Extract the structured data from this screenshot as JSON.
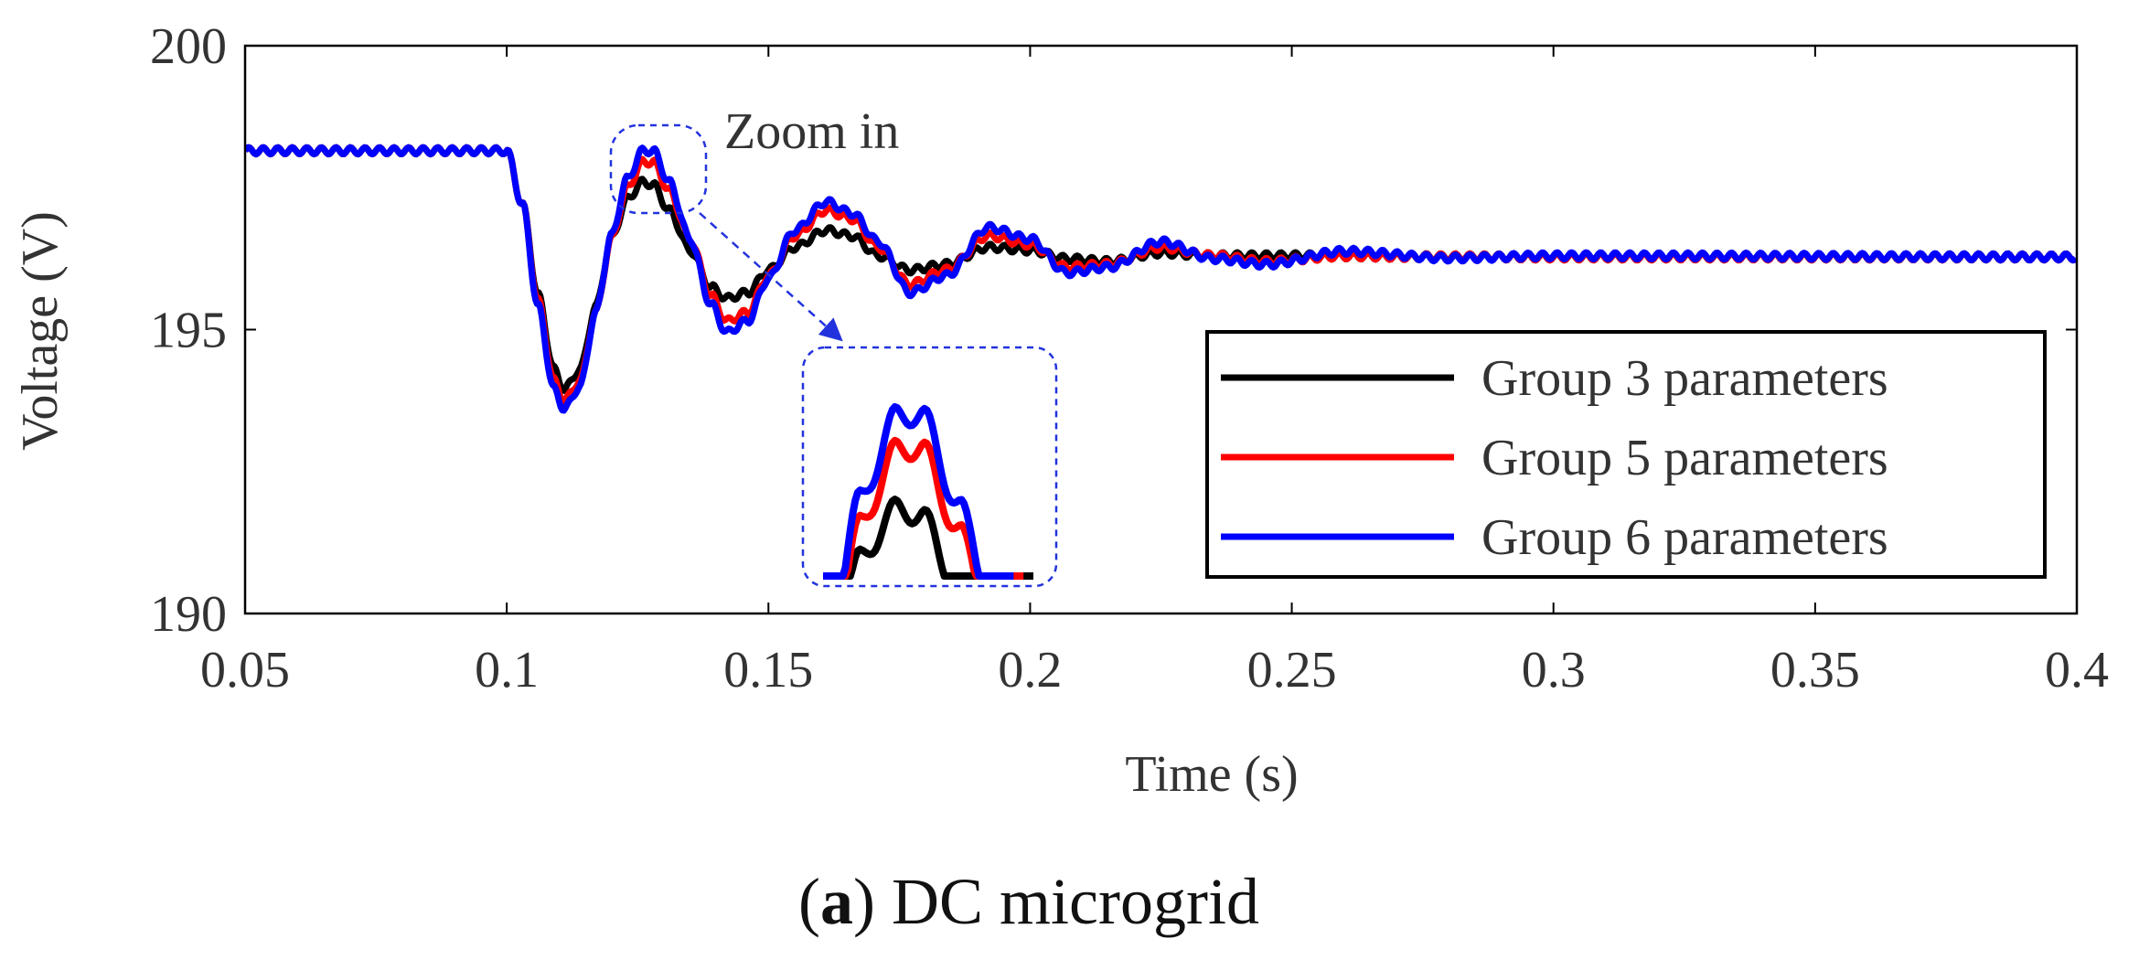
{
  "chart_data": {
    "type": "line",
    "title": "",
    "xlabel": "Time (s)",
    "ylabel": "Voltage (V)",
    "xlim": [
      0.05,
      0.4
    ],
    "ylim": [
      190,
      200
    ],
    "xticks": [
      0.05,
      0.1,
      0.15,
      0.2,
      0.25,
      0.3,
      0.35,
      0.4
    ],
    "xtick_labels": [
      "0.05",
      "0.1",
      "0.15",
      "0.2",
      "0.25",
      "0.3",
      "0.35",
      "0.4"
    ],
    "yticks": [
      190,
      195,
      200
    ],
    "ytick_labels": [
      "190",
      "195",
      "200"
    ],
    "grid": false,
    "legend_position": "bottom-right",
    "annotation": "Zoom in",
    "zoom_region": {
      "x": [
        0.12,
        0.137
      ],
      "y": [
        197.2,
        198.5
      ]
    },
    "series": [
      {
        "name": "Group 3 parameters",
        "color": "#000000",
        "x": [
          0.05,
          0.1,
          0.103,
          0.106,
          0.109,
          0.111,
          0.114,
          0.117,
          0.12,
          0.123,
          0.126,
          0.128,
          0.131,
          0.135,
          0.139,
          0.142,
          0.146,
          0.15,
          0.155,
          0.161,
          0.166,
          0.171,
          0.177,
          0.184,
          0.192,
          0.2,
          0.207,
          0.215,
          0.225,
          0.235,
          0.245,
          0.26,
          0.28,
          0.3,
          0.4
        ],
        "y": [
          198.15,
          198.15,
          197.2,
          195.6,
          194.3,
          193.95,
          194.3,
          195.4,
          196.6,
          197.3,
          197.6,
          197.55,
          197.1,
          196.4,
          195.75,
          195.55,
          195.65,
          196.05,
          196.45,
          196.75,
          196.65,
          196.3,
          196.05,
          196.15,
          196.45,
          196.4,
          196.25,
          196.2,
          196.35,
          196.3,
          196.3,
          196.3,
          196.28,
          196.28,
          196.28
        ]
      },
      {
        "name": "Group 5 parameters",
        "color": "#ff0000",
        "x": [
          0.05,
          0.1,
          0.103,
          0.106,
          0.109,
          0.111,
          0.114,
          0.117,
          0.12,
          0.123,
          0.126,
          0.128,
          0.131,
          0.135,
          0.139,
          0.142,
          0.146,
          0.15,
          0.155,
          0.161,
          0.166,
          0.171,
          0.177,
          0.184,
          0.192,
          0.2,
          0.207,
          0.215,
          0.225,
          0.235,
          0.245,
          0.26,
          0.28,
          0.3,
          0.4
        ],
        "y": [
          198.15,
          198.15,
          197.2,
          195.5,
          194.1,
          193.75,
          194.1,
          195.3,
          196.6,
          197.5,
          197.95,
          197.95,
          197.45,
          196.6,
          195.6,
          195.15,
          195.3,
          195.95,
          196.65,
          197.1,
          196.95,
          196.45,
          195.8,
          196.05,
          196.65,
          196.5,
          196.1,
          196.15,
          196.45,
          196.3,
          196.2,
          196.3,
          196.28,
          196.28,
          196.28
        ]
      },
      {
        "name": "Group 6 parameters",
        "color": "#0000ff",
        "x": [
          0.05,
          0.1,
          0.103,
          0.106,
          0.109,
          0.111,
          0.114,
          0.117,
          0.12,
          0.123,
          0.126,
          0.128,
          0.131,
          0.135,
          0.139,
          0.142,
          0.146,
          0.15,
          0.155,
          0.161,
          0.166,
          0.171,
          0.177,
          0.184,
          0.192,
          0.2,
          0.207,
          0.215,
          0.225,
          0.235,
          0.245,
          0.26,
          0.28,
          0.3,
          0.4
        ],
        "y": [
          198.15,
          198.15,
          197.2,
          195.4,
          193.95,
          193.6,
          194.0,
          195.3,
          196.65,
          197.65,
          198.15,
          198.15,
          197.6,
          196.6,
          195.45,
          194.95,
          195.15,
          195.9,
          196.75,
          197.25,
          197.05,
          196.55,
          195.65,
          195.95,
          196.8,
          196.6,
          196.0,
          196.1,
          196.55,
          196.25,
          196.15,
          196.38,
          196.26,
          196.3,
          196.28
        ]
      }
    ],
    "caption_prefix": "a",
    "caption_text": "DC microgrid"
  }
}
